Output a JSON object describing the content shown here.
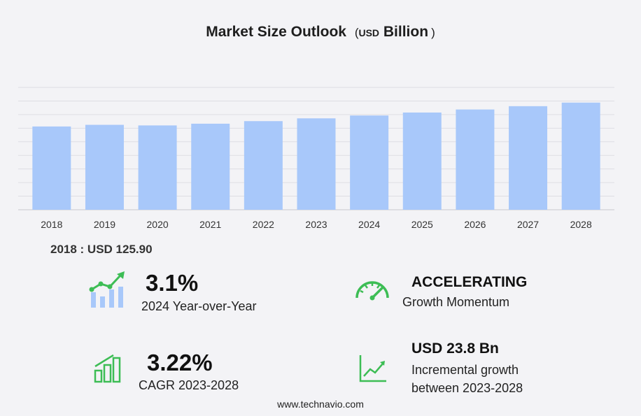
{
  "chart_data": {
    "type": "bar",
    "title": "Market Size Outlook",
    "unit_currency": "USD",
    "unit_scale": "Billion",
    "categories": [
      "2018",
      "2019",
      "2020",
      "2021",
      "2022",
      "2023",
      "2024",
      "2025",
      "2026",
      "2027",
      "2028"
    ],
    "values": [
      125.9,
      128.4,
      127.5,
      130.1,
      134.0,
      138.2,
      142.5,
      147.0,
      151.6,
      156.6,
      162.0
    ],
    "ylim": [
      0,
      185
    ],
    "grid": true,
    "bar_color": "#a8c8fa"
  },
  "base": {
    "text": "2018 : USD  125.90"
  },
  "kpis": {
    "yoy": {
      "value": "3.1%",
      "label": "2024 Year-over-Year",
      "icon": "bar-trend-icon"
    },
    "momentum": {
      "value": "ACCELERATING",
      "label": "Growth Momentum",
      "icon": "speedometer-icon"
    },
    "cagr": {
      "value": "3.22%",
      "label": "CAGR 2023-2028",
      "icon": "growth-bars-icon"
    },
    "incremental": {
      "value": "USD 23.8 Bn",
      "label_line1": "Incremental growth",
      "label_line2": "between 2023-2028",
      "icon": "line-chart-icon"
    }
  },
  "colors": {
    "accent_green": "#3dbd55",
    "accent_blue": "#a8c8fa"
  },
  "footer": {
    "text": "www.technavio.com"
  }
}
